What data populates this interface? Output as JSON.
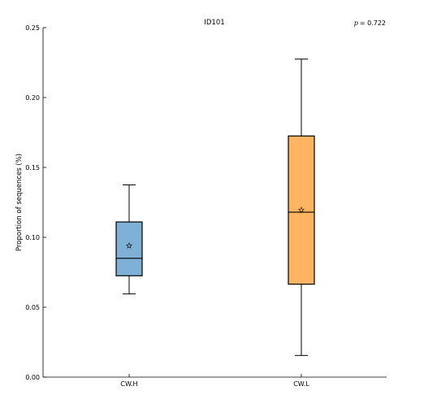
{
  "chart_data": {
    "type": "box",
    "title": "ID101",
    "annotation": "p = 0.722",
    "annotation_symbol": "p",
    "annotation_value": "= 0.722",
    "xlabel": "",
    "ylabel": "Proportion of sequences (%)",
    "ylim": [
      0.0,
      0.25
    ],
    "yticks": [
      "0.00",
      "0.05",
      "0.10",
      "0.15",
      "0.20",
      "0.25"
    ],
    "grid": false,
    "mean_marker": "star",
    "categories": [
      "CW.H",
      "CW.L"
    ],
    "boxes": [
      {
        "category": "CW.H",
        "color": "#7fb0d5",
        "whisker_low": 0.0595,
        "q1": 0.0725,
        "median": 0.085,
        "q3": 0.111,
        "whisker_high": 0.1375,
        "mean": 0.094
      },
      {
        "category": "CW.L",
        "color": "#feb462",
        "whisker_low": 0.0155,
        "q1": 0.0665,
        "median": 0.118,
        "q3": 0.1725,
        "whisker_high": 0.2275,
        "mean": 0.1195
      }
    ]
  }
}
